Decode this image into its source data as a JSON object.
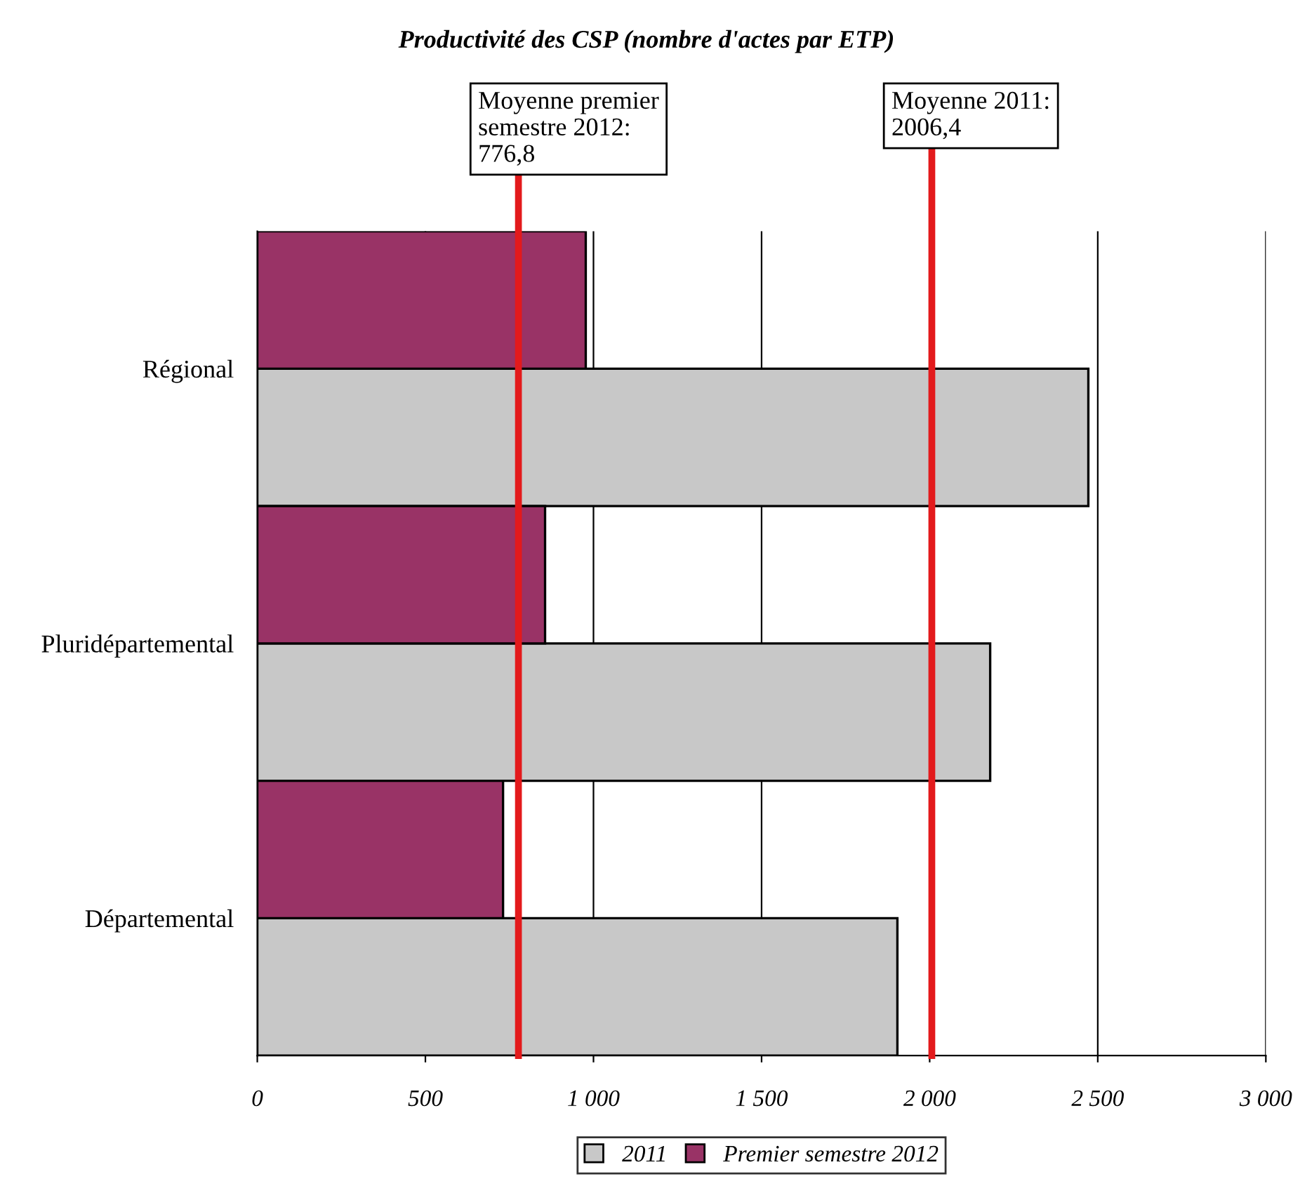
{
  "chart_data": {
    "type": "bar",
    "orientation": "horizontal",
    "title": "Productivité des CSP (nombre d'actes par ETP)",
    "categories": [
      "Régional",
      "Pluridépartemental",
      "Départemental"
    ],
    "series": [
      {
        "name": "2011",
        "color": "#c8c8c8",
        "values": [
          2472,
          2180,
          1904
        ]
      },
      {
        "name": "Premier semestre 2012",
        "color": "#993366",
        "values": [
          977,
          856,
          731
        ]
      }
    ],
    "xlim": [
      0,
      3000
    ],
    "xticks": [
      0,
      500,
      {
        "value": 1000,
        "label": "1 000"
      },
      {
        "value": 1500,
        "label": "1 500"
      },
      {
        "value": 2000,
        "label": "2 000"
      },
      {
        "value": 2500,
        "label": "2 500"
      },
      {
        "value": 3000,
        "label": "3 000"
      }
    ],
    "ref_lines": [
      {
        "axis": "x",
        "value": 776.8,
        "label": "Moyenne premier\nsemestre 2012:\n776,8",
        "color": "#e31a1c"
      },
      {
        "axis": "x",
        "value": 2006.4,
        "label": "Moyenne 2011:\n2006,4",
        "color": "#e31a1c"
      }
    ],
    "grid": "x",
    "legend": "bottom"
  }
}
